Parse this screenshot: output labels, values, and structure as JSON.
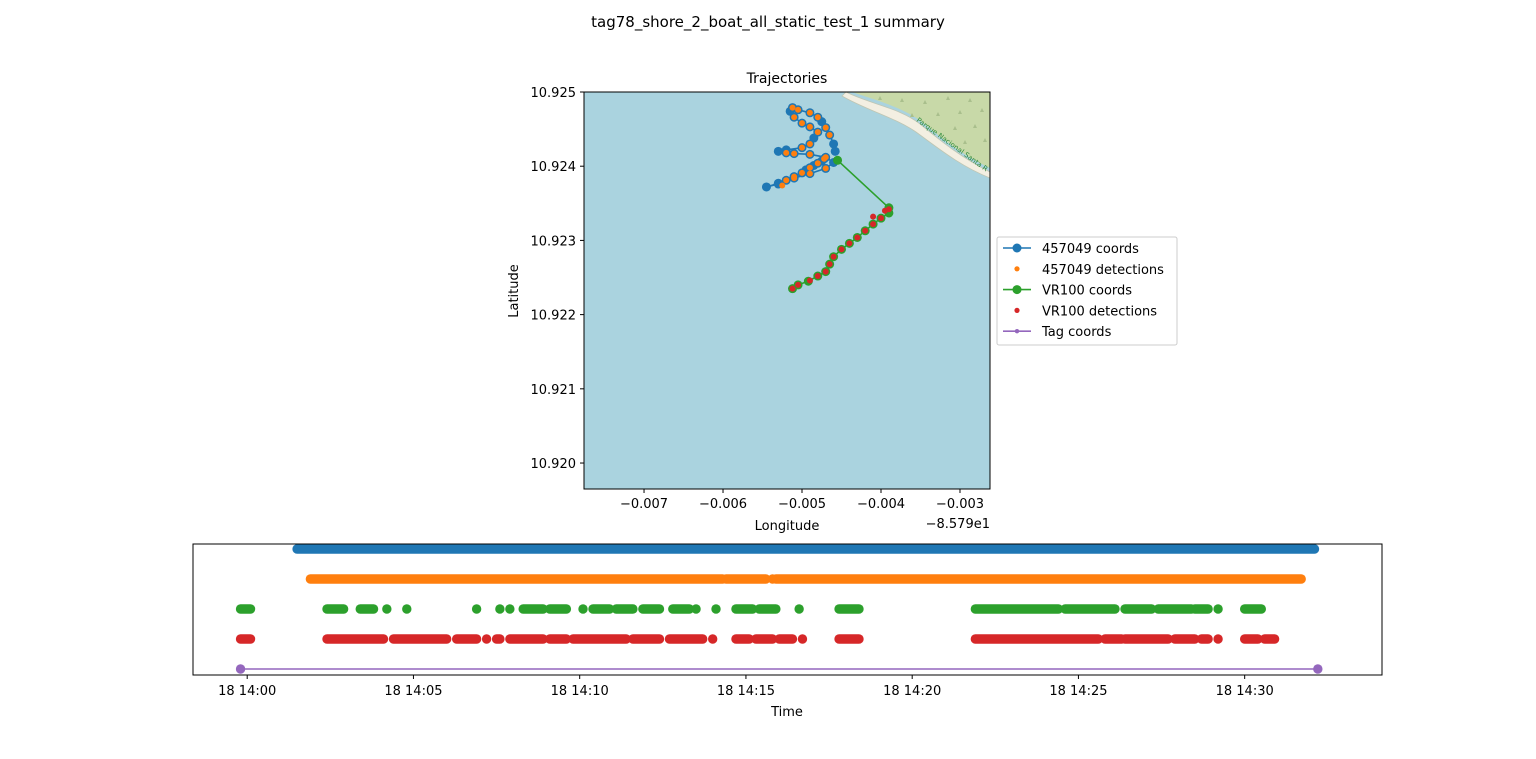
{
  "figure": {
    "title": "tag78_shore_2_boat_all_static_test_1 summary"
  },
  "colors": {
    "water": "#aad3df",
    "land": "#c8d9a8",
    "coast_edge": "#f3efe2",
    "series_457049_coords": "#1f77b4",
    "series_457049_detections": "#ff7f0e",
    "series_vr100_coords": "#2ca02c",
    "series_vr100_detections": "#d62728",
    "series_tag_coords": "#9467bd",
    "map_label": "#2e8b3a"
  },
  "map_overlay": {
    "park_label": "Parque Nacional Santa R"
  },
  "chart_data": [
    {
      "type": "line",
      "title": "Trajectories",
      "xlabel": "Longitude",
      "ylabel": "Latitude",
      "x_offset_label": "−8.579e1",
      "xlim": [
        -0.00776,
        -0.00262
      ],
      "ylim": [
        10.91965,
        10.925
      ],
      "x_ticks": [
        -0.007,
        -0.006,
        -0.005,
        -0.004,
        -0.003
      ],
      "x_tick_labels": [
        "−0.007",
        "−0.006",
        "−0.005",
        "−0.004",
        "−0.003"
      ],
      "y_ticks": [
        10.92,
        10.921,
        10.922,
        10.923,
        10.924,
        10.925
      ],
      "y_tick_labels": [
        "10.920",
        "10.921",
        "10.922",
        "10.923",
        "10.924",
        "10.925"
      ],
      "legend_position": "right",
      "legend": [
        "457049 coords",
        "457049 detections",
        "VR100 coords",
        "VR100 detections",
        "Tag coords"
      ],
      "series": [
        {
          "name": "457049 coords",
          "style": "line-marker",
          "x": [
            -0.00472,
            -0.00475,
            -0.0048,
            -0.00485,
            -0.0049,
            -0.00495,
            -0.005,
            -0.0051,
            -0.0052,
            -0.0053,
            -0.00545,
            -0.0053,
            -0.0051,
            -0.0049,
            -0.0047,
            -0.0046,
            -0.0047,
            -0.0049,
            -0.0051,
            -0.0052,
            -0.0053,
            -0.0052,
            -0.005,
            -0.0049,
            -0.00485,
            -0.0048,
            -0.0049,
            -0.005,
            -0.0051,
            -0.00515,
            -0.00512,
            -0.00505,
            -0.0049,
            -0.0048,
            -0.00475,
            -0.0047,
            -0.00465,
            -0.0046,
            -0.00458
          ],
          "y": [
            10.9241,
            10.92407,
            10.92404,
            10.92401,
            10.92398,
            10.92395,
            10.92391,
            10.92386,
            10.92381,
            10.92377,
            10.92372,
            10.92376,
            10.92384,
            10.9239,
            10.92397,
            10.92405,
            10.92412,
            10.92416,
            10.92417,
            10.92418,
            10.9242,
            10.92422,
            10.92425,
            10.9243,
            10.92438,
            10.92446,
            10.92453,
            10.92458,
            10.92466,
            10.92474,
            10.92479,
            10.92476,
            10.92472,
            10.92466,
            10.9246,
            10.92452,
            10.92442,
            10.9243,
            10.9242
          ]
        },
        {
          "name": "457049 detections",
          "style": "dots",
          "x": [
            -0.00472,
            -0.0048,
            -0.0049,
            -0.005,
            -0.0051,
            -0.0052,
            -0.00525,
            -0.0051,
            -0.0049,
            -0.0047,
            -0.0047,
            -0.0049,
            -0.0051,
            -0.0052,
            -0.005,
            -0.0049,
            -0.0048,
            -0.0049,
            -0.005,
            -0.0051,
            -0.00512,
            -0.00505,
            -0.0049,
            -0.0048,
            -0.0047,
            -0.00465
          ],
          "y": [
            10.9241,
            10.92404,
            10.92398,
            10.92391,
            10.92386,
            10.92381,
            10.92374,
            10.92384,
            10.9239,
            10.92397,
            10.92412,
            10.92416,
            10.92417,
            10.92418,
            10.92425,
            10.9243,
            10.92446,
            10.92453,
            10.92458,
            10.92466,
            10.92479,
            10.92476,
            10.92472,
            10.92466,
            10.92452,
            10.92442
          ]
        },
        {
          "name": "VR100 coords",
          "style": "line-marker",
          "x": [
            -0.00455,
            -0.0039,
            -0.0039,
            -0.004,
            -0.0041,
            -0.0042,
            -0.0043,
            -0.0044,
            -0.0045,
            -0.0046,
            -0.00465,
            -0.0047,
            -0.0048,
            -0.00492,
            -0.00505,
            -0.00512
          ],
          "y": [
            10.92408,
            10.92344,
            10.92337,
            10.9233,
            10.92322,
            10.92313,
            10.92304,
            10.92296,
            10.92288,
            10.92278,
            10.92268,
            10.92258,
            10.92252,
            10.92245,
            10.9224,
            10.92235
          ]
        },
        {
          "name": "VR100 detections",
          "style": "dots",
          "x": [
            -0.0039,
            -0.004,
            -0.0041,
            -0.0042,
            -0.0043,
            -0.0044,
            -0.0045,
            -0.0046,
            -0.00465,
            -0.0047,
            -0.0048,
            -0.0049,
            -0.00505,
            -0.00512,
            -0.00395,
            -0.0041
          ],
          "y": [
            10.92342,
            10.9233,
            10.92322,
            10.92313,
            10.92304,
            10.92296,
            10.92288,
            10.92278,
            10.92268,
            10.92258,
            10.92252,
            10.92246,
            10.9224,
            10.92235,
            10.9234,
            10.92332
          ]
        }
      ]
    },
    {
      "type": "scatter",
      "xlabel": "Time",
      "x_ticks": [
        "18 14:00",
        "18 14:05",
        "18 14:10",
        "18 14:15",
        "18 14:20",
        "18 14:25",
        "18 14:30"
      ],
      "x_tick_minutes": [
        0,
        5,
        10,
        15,
        20,
        25,
        30
      ],
      "xlim_minutes": [
        -1.63,
        34.13
      ],
      "series": [
        {
          "name": "457049 coords",
          "row": 4,
          "segments": [
            [
              1.5,
              32.1
            ]
          ],
          "points": []
        },
        {
          "name": "457049 detections",
          "row": 3,
          "segments": [
            [
              1.9,
              14.3
            ],
            [
              14.4,
              15.6
            ],
            [
              15.9,
              31.7
            ]
          ],
          "points": [
            15.8
          ]
        },
        {
          "name": "VR100 coords",
          "row": 2,
          "segments": [
            [
              -0.2,
              0.1
            ],
            [
              2.4,
              2.9
            ],
            [
              3.4,
              3.8
            ],
            [
              8.3,
              8.9
            ],
            [
              9.1,
              9.6
            ],
            [
              10.4,
              10.9
            ],
            [
              11.1,
              11.6
            ],
            [
              11.9,
              12.4
            ],
            [
              12.8,
              13.3
            ],
            [
              14.7,
              15.2
            ],
            [
              15.4,
              15.9
            ],
            [
              17.8,
              18.4
            ],
            [
              21.9,
              24.4
            ],
            [
              24.6,
              26.1
            ],
            [
              26.4,
              27.2
            ],
            [
              27.4,
              28.4
            ],
            [
              28.5,
              28.9
            ],
            [
              30.0,
              30.5
            ]
          ],
          "points": [
            4.2,
            4.8,
            6.9,
            7.6,
            7.9,
            10.1,
            13.5,
            14.1,
            16.6,
            29.2
          ]
        },
        {
          "name": "VR100 detections",
          "row": 1,
          "segments": [
            [
              -0.2,
              0.1
            ],
            [
              2.4,
              4.1
            ],
            [
              4.4,
              6.0
            ],
            [
              6.3,
              6.9
            ],
            [
              7.5,
              7.6
            ],
            [
              7.9,
              8.9
            ],
            [
              9.1,
              9.6
            ],
            [
              9.8,
              11.4
            ],
            [
              11.6,
              12.4
            ],
            [
              12.7,
              13.7
            ],
            [
              14.7,
              15.1
            ],
            [
              15.3,
              15.8
            ],
            [
              16.0,
              16.4
            ],
            [
              17.8,
              18.4
            ],
            [
              21.9,
              25.6
            ],
            [
              25.8,
              26.3
            ],
            [
              26.4,
              27.7
            ],
            [
              27.9,
              28.5
            ],
            [
              28.7,
              28.9
            ],
            [
              30.0,
              30.4
            ],
            [
              30.6,
              30.9
            ]
          ],
          "points": [
            7.2,
            14.0,
            16.7,
            29.2
          ]
        },
        {
          "name": "Tag coords",
          "row": 0,
          "line": [
            -0.2,
            32.2
          ],
          "points": [
            -0.2,
            32.2
          ]
        }
      ]
    }
  ]
}
